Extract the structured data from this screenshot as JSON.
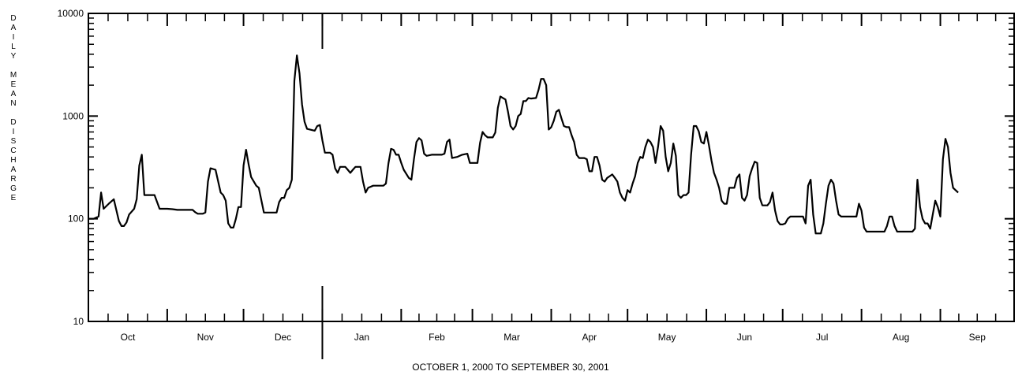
{
  "chart_data": {
    "type": "line",
    "ylabel": "DAILY MEAN DISCHARGE",
    "xlabel": "OCTOBER 1, 2000  TO  SEPTEMBER 30, 2001",
    "yscale": "log",
    "ylim": [
      10,
      10000
    ],
    "y_ticks": [
      "10",
      "100",
      "1000",
      "10000"
    ],
    "x_ticks": [
      "Oct",
      "Nov",
      "Dec",
      "Jan",
      "Feb",
      "Mar",
      "Apr",
      "May",
      "Jun",
      "Jul",
      "Aug",
      "Sep"
    ],
    "x_range_days": [
      0,
      364
    ],
    "series": [
      {
        "points": [
          [
            0,
            100
          ],
          [
            2,
            100
          ],
          [
            4,
            105
          ],
          [
            5,
            180
          ],
          [
            6,
            125
          ],
          [
            8,
            140
          ],
          [
            10,
            155
          ],
          [
            12,
            95
          ],
          [
            13,
            85
          ],
          [
            14,
            85
          ],
          [
            15,
            92
          ],
          [
            16,
            110
          ],
          [
            18,
            125
          ],
          [
            19,
            155
          ],
          [
            20,
            330
          ],
          [
            21,
            420
          ],
          [
            22,
            170
          ],
          [
            24,
            170
          ],
          [
            25,
            170
          ],
          [
            26,
            170
          ],
          [
            28,
            125
          ],
          [
            30,
            125
          ],
          [
            31,
            125
          ],
          [
            33,
            124
          ],
          [
            35,
            122
          ],
          [
            38,
            122
          ],
          [
            41,
            122
          ],
          [
            42,
            116
          ],
          [
            43,
            112
          ],
          [
            45,
            112
          ],
          [
            46,
            115
          ],
          [
            47,
            230
          ],
          [
            48,
            310
          ],
          [
            50,
            300
          ],
          [
            52,
            180
          ],
          [
            53,
            170
          ],
          [
            54,
            150
          ],
          [
            55,
            90
          ],
          [
            56,
            82
          ],
          [
            57,
            82
          ],
          [
            58,
            100
          ],
          [
            59,
            130
          ],
          [
            60,
            130
          ],
          [
            61,
            330
          ],
          [
            62,
            470
          ],
          [
            63,
            340
          ],
          [
            64,
            255
          ],
          [
            66,
            210
          ],
          [
            67,
            200
          ],
          [
            69,
            115
          ],
          [
            73,
            115
          ],
          [
            74,
            115
          ],
          [
            75,
            145
          ],
          [
            76,
            160
          ],
          [
            77,
            160
          ],
          [
            78,
            190
          ],
          [
            79,
            200
          ],
          [
            80,
            240
          ],
          [
            81,
            2200
          ],
          [
            82,
            3900
          ],
          [
            83,
            2600
          ],
          [
            84,
            1300
          ],
          [
            85,
            880
          ],
          [
            86,
            750
          ],
          [
            89,
            720
          ],
          [
            90,
            800
          ],
          [
            91,
            820
          ],
          [
            92,
            580
          ],
          [
            93,
            440
          ],
          [
            95,
            440
          ],
          [
            96,
            420
          ],
          [
            97,
            310
          ],
          [
            98,
            280
          ],
          [
            99,
            320
          ],
          [
            101,
            320
          ],
          [
            102,
            300
          ],
          [
            103,
            280
          ],
          [
            104,
            300
          ],
          [
            105,
            320
          ],
          [
            106,
            320
          ],
          [
            107,
            320
          ],
          [
            108,
            230
          ],
          [
            109,
            180
          ],
          [
            110,
            200
          ],
          [
            112,
            210
          ],
          [
            115,
            210
          ],
          [
            116,
            210
          ],
          [
            117,
            220
          ],
          [
            118,
            350
          ],
          [
            119,
            480
          ],
          [
            120,
            470
          ],
          [
            121,
            420
          ],
          [
            122,
            420
          ],
          [
            123,
            350
          ],
          [
            124,
            300
          ],
          [
            126,
            250
          ],
          [
            127,
            240
          ],
          [
            128,
            380
          ],
          [
            129,
            560
          ],
          [
            130,
            610
          ],
          [
            131,
            580
          ],
          [
            132,
            430
          ],
          [
            133,
            410
          ],
          [
            135,
            420
          ],
          [
            137,
            420
          ],
          [
            139,
            420
          ],
          [
            140,
            430
          ],
          [
            141,
            560
          ],
          [
            142,
            590
          ],
          [
            143,
            390
          ],
          [
            145,
            400
          ],
          [
            146,
            410
          ],
          [
            147,
            420
          ],
          [
            149,
            430
          ],
          [
            150,
            350
          ],
          [
            152,
            350
          ],
          [
            153,
            350
          ],
          [
            154,
            550
          ],
          [
            155,
            700
          ],
          [
            156,
            650
          ],
          [
            157,
            620
          ],
          [
            159,
            620
          ],
          [
            160,
            690
          ],
          [
            161,
            1200
          ],
          [
            162,
            1550
          ],
          [
            163,
            1500
          ],
          [
            164,
            1450
          ],
          [
            165,
            1100
          ],
          [
            166,
            800
          ],
          [
            167,
            740
          ],
          [
            168,
            800
          ],
          [
            169,
            1000
          ],
          [
            170,
            1050
          ],
          [
            171,
            1400
          ],
          [
            172,
            1400
          ],
          [
            173,
            1500
          ],
          [
            174,
            1480
          ],
          [
            176,
            1500
          ],
          [
            177,
            1800
          ],
          [
            178,
            2300
          ],
          [
            179,
            2300
          ],
          [
            180,
            2000
          ],
          [
            181,
            740
          ],
          [
            182,
            780
          ],
          [
            183,
            900
          ],
          [
            184,
            1100
          ],
          [
            185,
            1150
          ],
          [
            186,
            950
          ],
          [
            187,
            800
          ],
          [
            188,
            780
          ],
          [
            189,
            780
          ],
          [
            190,
            650
          ],
          [
            191,
            560
          ],
          [
            192,
            420
          ],
          [
            193,
            390
          ],
          [
            195,
            390
          ],
          [
            196,
            380
          ],
          [
            197,
            290
          ],
          [
            198,
            290
          ],
          [
            199,
            400
          ],
          [
            200,
            400
          ],
          [
            201,
            330
          ],
          [
            202,
            240
          ],
          [
            203,
            230
          ],
          [
            204,
            250
          ],
          [
            205,
            260
          ],
          [
            206,
            270
          ],
          [
            207,
            250
          ],
          [
            208,
            230
          ],
          [
            209,
            180
          ],
          [
            210,
            160
          ],
          [
            211,
            150
          ],
          [
            212,
            190
          ],
          [
            213,
            180
          ],
          [
            214,
            220
          ],
          [
            215,
            260
          ],
          [
            216,
            350
          ],
          [
            217,
            400
          ],
          [
            218,
            390
          ],
          [
            219,
            500
          ],
          [
            220,
            590
          ],
          [
            221,
            560
          ],
          [
            222,
            500
          ],
          [
            223,
            350
          ],
          [
            224,
            500
          ],
          [
            225,
            800
          ],
          [
            226,
            720
          ],
          [
            227,
            400
          ],
          [
            228,
            290
          ],
          [
            229,
            350
          ],
          [
            230,
            540
          ],
          [
            231,
            410
          ],
          [
            232,
            170
          ],
          [
            233,
            160
          ],
          [
            234,
            170
          ],
          [
            235,
            170
          ],
          [
            236,
            180
          ],
          [
            237,
            420
          ],
          [
            238,
            800
          ],
          [
            239,
            800
          ],
          [
            240,
            710
          ],
          [
            241,
            560
          ],
          [
            242,
            540
          ],
          [
            243,
            700
          ],
          [
            244,
            520
          ],
          [
            245,
            370
          ],
          [
            246,
            280
          ],
          [
            247,
            240
          ],
          [
            248,
            200
          ],
          [
            249,
            150
          ],
          [
            250,
            140
          ],
          [
            251,
            140
          ],
          [
            252,
            200
          ],
          [
            254,
            200
          ],
          [
            255,
            250
          ],
          [
            256,
            270
          ],
          [
            257,
            160
          ],
          [
            258,
            150
          ],
          [
            259,
            170
          ],
          [
            260,
            260
          ],
          [
            261,
            310
          ],
          [
            262,
            360
          ],
          [
            263,
            350
          ],
          [
            264,
            160
          ],
          [
            265,
            135
          ],
          [
            267,
            135
          ],
          [
            268,
            145
          ],
          [
            269,
            180
          ],
          [
            270,
            120
          ],
          [
            271,
            95
          ],
          [
            272,
            88
          ],
          [
            273,
            88
          ],
          [
            274,
            90
          ],
          [
            275,
            100
          ],
          [
            276,
            105
          ],
          [
            281,
            105
          ],
          [
            282,
            90
          ],
          [
            283,
            210
          ],
          [
            284,
            240
          ],
          [
            285,
            110
          ],
          [
            286,
            72
          ],
          [
            288,
            72
          ],
          [
            289,
            90
          ],
          [
            290,
            140
          ],
          [
            291,
            210
          ],
          [
            292,
            240
          ],
          [
            293,
            220
          ],
          [
            294,
            150
          ],
          [
            295,
            110
          ],
          [
            296,
            105
          ],
          [
            301,
            105
          ],
          [
            302,
            105
          ],
          [
            303,
            140
          ],
          [
            304,
            120
          ],
          [
            305,
            82
          ],
          [
            306,
            75
          ],
          [
            313,
            75
          ],
          [
            314,
            85
          ],
          [
            315,
            105
          ],
          [
            316,
            105
          ],
          [
            317,
            85
          ],
          [
            318,
            75
          ],
          [
            324,
            75
          ],
          [
            325,
            80
          ],
          [
            326,
            240
          ],
          [
            327,
            130
          ],
          [
            328,
            100
          ],
          [
            329,
            90
          ],
          [
            330,
            90
          ],
          [
            331,
            80
          ],
          [
            332,
            110
          ],
          [
            333,
            150
          ],
          [
            334,
            130
          ],
          [
            335,
            105
          ],
          [
            336,
            380
          ],
          [
            337,
            600
          ],
          [
            338,
            500
          ],
          [
            339,
            280
          ],
          [
            340,
            200
          ],
          [
            342,
            180
          ]
        ]
      }
    ]
  }
}
